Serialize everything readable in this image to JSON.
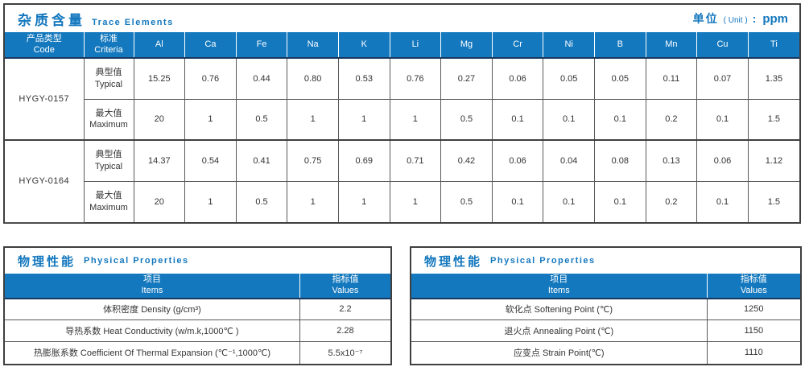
{
  "trace_table": {
    "title_zh": "杂质含量",
    "title_en": "Trace Elements",
    "unit_zh": "单位",
    "unit_paren": "( Unit )",
    "unit_colon": ":",
    "unit_value": "ppm",
    "header_code_zh": "产品类型",
    "header_code_en": "Code",
    "header_criteria_zh": "标准",
    "header_criteria_en": "Criteria",
    "elements": [
      "Al",
      "Ca",
      "Fe",
      "Na",
      "K",
      "Li",
      "Mg",
      "Cr",
      "Ni",
      "B",
      "Mn",
      "Cu",
      "Ti"
    ],
    "groups": [
      {
        "code": "HYGY-0157",
        "rows": [
          {
            "criteria_zh": "典型值",
            "criteria_en": "Typical",
            "values": [
              "15.25",
              "0.76",
              "0.44",
              "0.80",
              "0.53",
              "0.76",
              "0.27",
              "0.06",
              "0.05",
              "0.05",
              "0.11",
              "0.07",
              "1.35"
            ]
          },
          {
            "criteria_zh": "最大值",
            "criteria_en": "Maximum",
            "values": [
              "20",
              "1",
              "0.5",
              "1",
              "1",
              "1",
              "0.5",
              "0.1",
              "0.1",
              "0.1",
              "0.2",
              "0.1",
              "1.5"
            ]
          }
        ]
      },
      {
        "code": "HYGY-0164",
        "rows": [
          {
            "criteria_zh": "典型值",
            "criteria_en": "Typical",
            "values": [
              "14.37",
              "0.54",
              "0.41",
              "0.75",
              "0.69",
              "0.71",
              "0.42",
              "0.06",
              "0.04",
              "0.08",
              "0.13",
              "0.06",
              "1.12"
            ]
          },
          {
            "criteria_zh": "最大值",
            "criteria_en": "Maximum",
            "values": [
              "20",
              "1",
              "0.5",
              "1",
              "1",
              "1",
              "0.5",
              "0.1",
              "0.1",
              "0.1",
              "0.2",
              "0.1",
              "1.5"
            ]
          }
        ]
      }
    ]
  },
  "physical_left": {
    "title_zh": "物理性能",
    "title_en": "Physical Properties",
    "header_item_zh": "项目",
    "header_item_en": "Items",
    "header_value_zh": "指标值",
    "header_value_en": "Values",
    "rows": [
      {
        "item": "体积密度 Density (g/cm³)",
        "value": "2.2"
      },
      {
        "item": "导热系数 Heat Conductivity (w/m.k,1000℃ )",
        "value": "2.28"
      },
      {
        "item": "热膨胀系数 Coefficient Of Thermal Expansion (℃⁻¹,1000℃)",
        "value": "5.5x10⁻⁷"
      }
    ]
  },
  "physical_right": {
    "title_zh": "物理性能",
    "title_en": "Physical Properties",
    "header_item_zh": "项目",
    "header_item_en": "Items",
    "header_value_zh": "指标值",
    "header_value_en": "Values",
    "rows": [
      {
        "item": "软化点 Softening Point (℃)",
        "value": "1250"
      },
      {
        "item": "退火点 Annealing Point (℃)",
        "value": "1150"
      },
      {
        "item": "应变点 Strain Point(℃)",
        "value": "1110"
      }
    ]
  }
}
